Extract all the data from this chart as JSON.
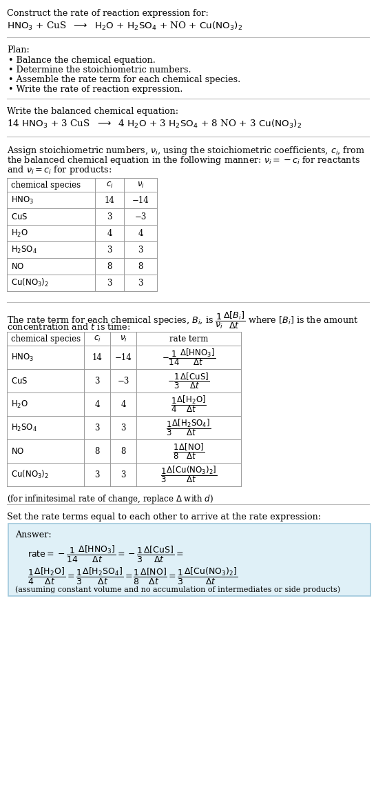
{
  "bg_color": "#ffffff",
  "text_color": "#000000",
  "title_line1": "Construct the rate of reaction expression for:",
  "plan_header": "Plan:",
  "plan_items": [
    "• Balance the chemical equation.",
    "• Determine the stoichiometric numbers.",
    "• Assemble the rate term for each chemical species.",
    "• Write the rate of reaction expression."
  ],
  "balanced_header": "Write the balanced chemical equation:",
  "stoich_intro_lines": [
    "Assign stoichiometric numbers, $\\nu_i$, using the stoichiometric coefficients, $c_i$, from",
    "the balanced chemical equation in the following manner: $\\nu_i = -c_i$ for reactants",
    "and $\\nu_i = c_i$ for products:"
  ],
  "table1_headers": [
    "chemical species",
    "$c_i$",
    "$\\nu_i$"
  ],
  "table1_species": [
    "$\\mathrm{HNO_3}$",
    "$\\mathrm{CuS}$",
    "$\\mathrm{H_2O}$",
    "$\\mathrm{H_2SO_4}$",
    "$\\mathrm{NO}$",
    "$\\mathrm{Cu(NO_3)_2}$"
  ],
  "table1_ci": [
    "14",
    "3",
    "4",
    "3",
    "8",
    "3"
  ],
  "table1_nui": [
    "−14",
    "−3",
    "4",
    "3",
    "8",
    "3"
  ],
  "rate_intro_line1": "The rate term for each chemical species, $B_i$, is $\\dfrac{1}{\\nu_i}\\dfrac{\\Delta[B_i]}{\\Delta t}$ where $[B_i]$ is the amount",
  "rate_intro_line2": "concentration and $t$ is time:",
  "table2_headers": [
    "chemical species",
    "$c_i$",
    "$\\nu_i$",
    "rate term"
  ],
  "table2_species": [
    "$\\mathrm{HNO_3}$",
    "$\\mathrm{CuS}$",
    "$\\mathrm{H_2O}$",
    "$\\mathrm{H_2SO_4}$",
    "$\\mathrm{NO}$",
    "$\\mathrm{Cu(NO_3)_2}$"
  ],
  "table2_ci": [
    "14",
    "3",
    "4",
    "3",
    "8",
    "3"
  ],
  "table2_nui": [
    "−14",
    "−3",
    "4",
    "3",
    "8",
    "3"
  ],
  "table2_rate": [
    "$-\\dfrac{1}{14}\\dfrac{\\Delta[\\mathrm{HNO_3}]}{\\Delta t}$",
    "$-\\dfrac{1}{3}\\dfrac{\\Delta[\\mathrm{CuS}]}{\\Delta t}$",
    "$\\dfrac{1}{4}\\dfrac{\\Delta[\\mathrm{H_2O}]}{\\Delta t}$",
    "$\\dfrac{1}{3}\\dfrac{\\Delta[\\mathrm{H_2SO_4}]}{\\Delta t}$",
    "$\\dfrac{1}{8}\\dfrac{\\Delta[\\mathrm{NO}]}{\\Delta t}$",
    "$\\dfrac{1}{3}\\dfrac{\\Delta[\\mathrm{Cu(NO_3)_2}]}{\\Delta t}$"
  ],
  "infinitesimal_note": "(for infinitesimal rate of change, replace $\\Delta$ with $d$)",
  "set_rate_text": "Set the rate terms equal to each other to arrive at the rate expression:",
  "answer_box_color": "#dff0f7",
  "answer_border_color": "#a0c8dc",
  "answer_label": "Answer:",
  "answer_rate_line1": "$\\mathrm{rate} = -\\dfrac{1}{14}\\dfrac{\\Delta[\\mathrm{HNO_3}]}{\\Delta t} = -\\dfrac{1}{3}\\dfrac{\\Delta[\\mathrm{CuS}]}{\\Delta t} =$",
  "answer_rate_line2": "$\\dfrac{1}{4}\\dfrac{\\Delta[\\mathrm{H_2O}]}{\\Delta t} = \\dfrac{1}{3}\\dfrac{\\Delta[\\mathrm{H_2SO_4}]}{\\Delta t} = \\dfrac{1}{8}\\dfrac{\\Delta[\\mathrm{NO}]}{\\Delta t} = \\dfrac{1}{3}\\dfrac{\\Delta[\\mathrm{Cu(NO_3)_2}]}{\\Delta t}$",
  "assuming_note": "(assuming constant volume and no accumulation of intermediates or side products)"
}
